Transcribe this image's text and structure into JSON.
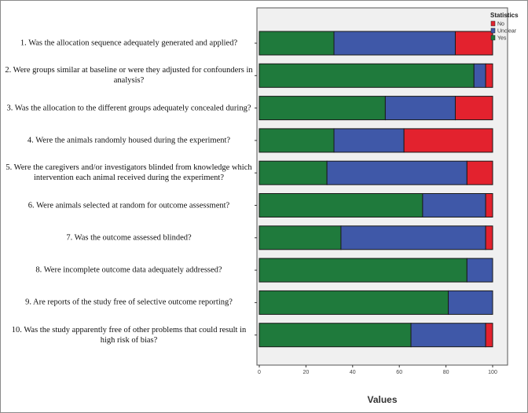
{
  "chart_data": {
    "type": "bar",
    "orientation": "horizontal",
    "stacked": true,
    "categories": [
      "1. Was the allocation sequence adequately generated and applied?",
      "2. Were groups similar at baseline or were they adjusted for confounders in analysis?",
      "3. Was the allocation to the different groups adequately concealed during?",
      "4. Were the animals randomly housed during the experiment?",
      "5. Were the caregivers and/or investigators blinded from knowledge which intervention each animal received during the experiment?",
      "6. Were animals selected at random for outcome assessment?",
      "7. Was the outcome assessed blinded?",
      "8. Were incomplete outcome data adequately addressed?",
      "9. Are reports of the study free of selective outcome reporting?",
      "10. Was the study apparently free of other problems that could result in high risk of bias?"
    ],
    "series": [
      {
        "name": "Yes",
        "color": "#1f7a3c",
        "values": [
          32,
          92,
          54,
          32,
          29,
          70,
          35,
          89,
          81,
          65
        ]
      },
      {
        "name": "Unclear",
        "color": "#3f58a8",
        "values": [
          52,
          5,
          30,
          30,
          60,
          27,
          62,
          11,
          19,
          32
        ]
      },
      {
        "name": "No",
        "color": "#e3222e",
        "values": [
          16,
          3,
          16,
          38,
          11,
          3,
          3,
          0,
          0,
          3
        ]
      }
    ],
    "xlabel": "Values",
    "ylabel": "",
    "xlim": [
      0,
      100
    ],
    "xticks": [
      0,
      20,
      40,
      60,
      80,
      100
    ],
    "grid": false,
    "legend": {
      "title": "Statistics",
      "placement": "top-right",
      "entries": [
        "No",
        "Unclear",
        "Yes"
      ]
    }
  }
}
